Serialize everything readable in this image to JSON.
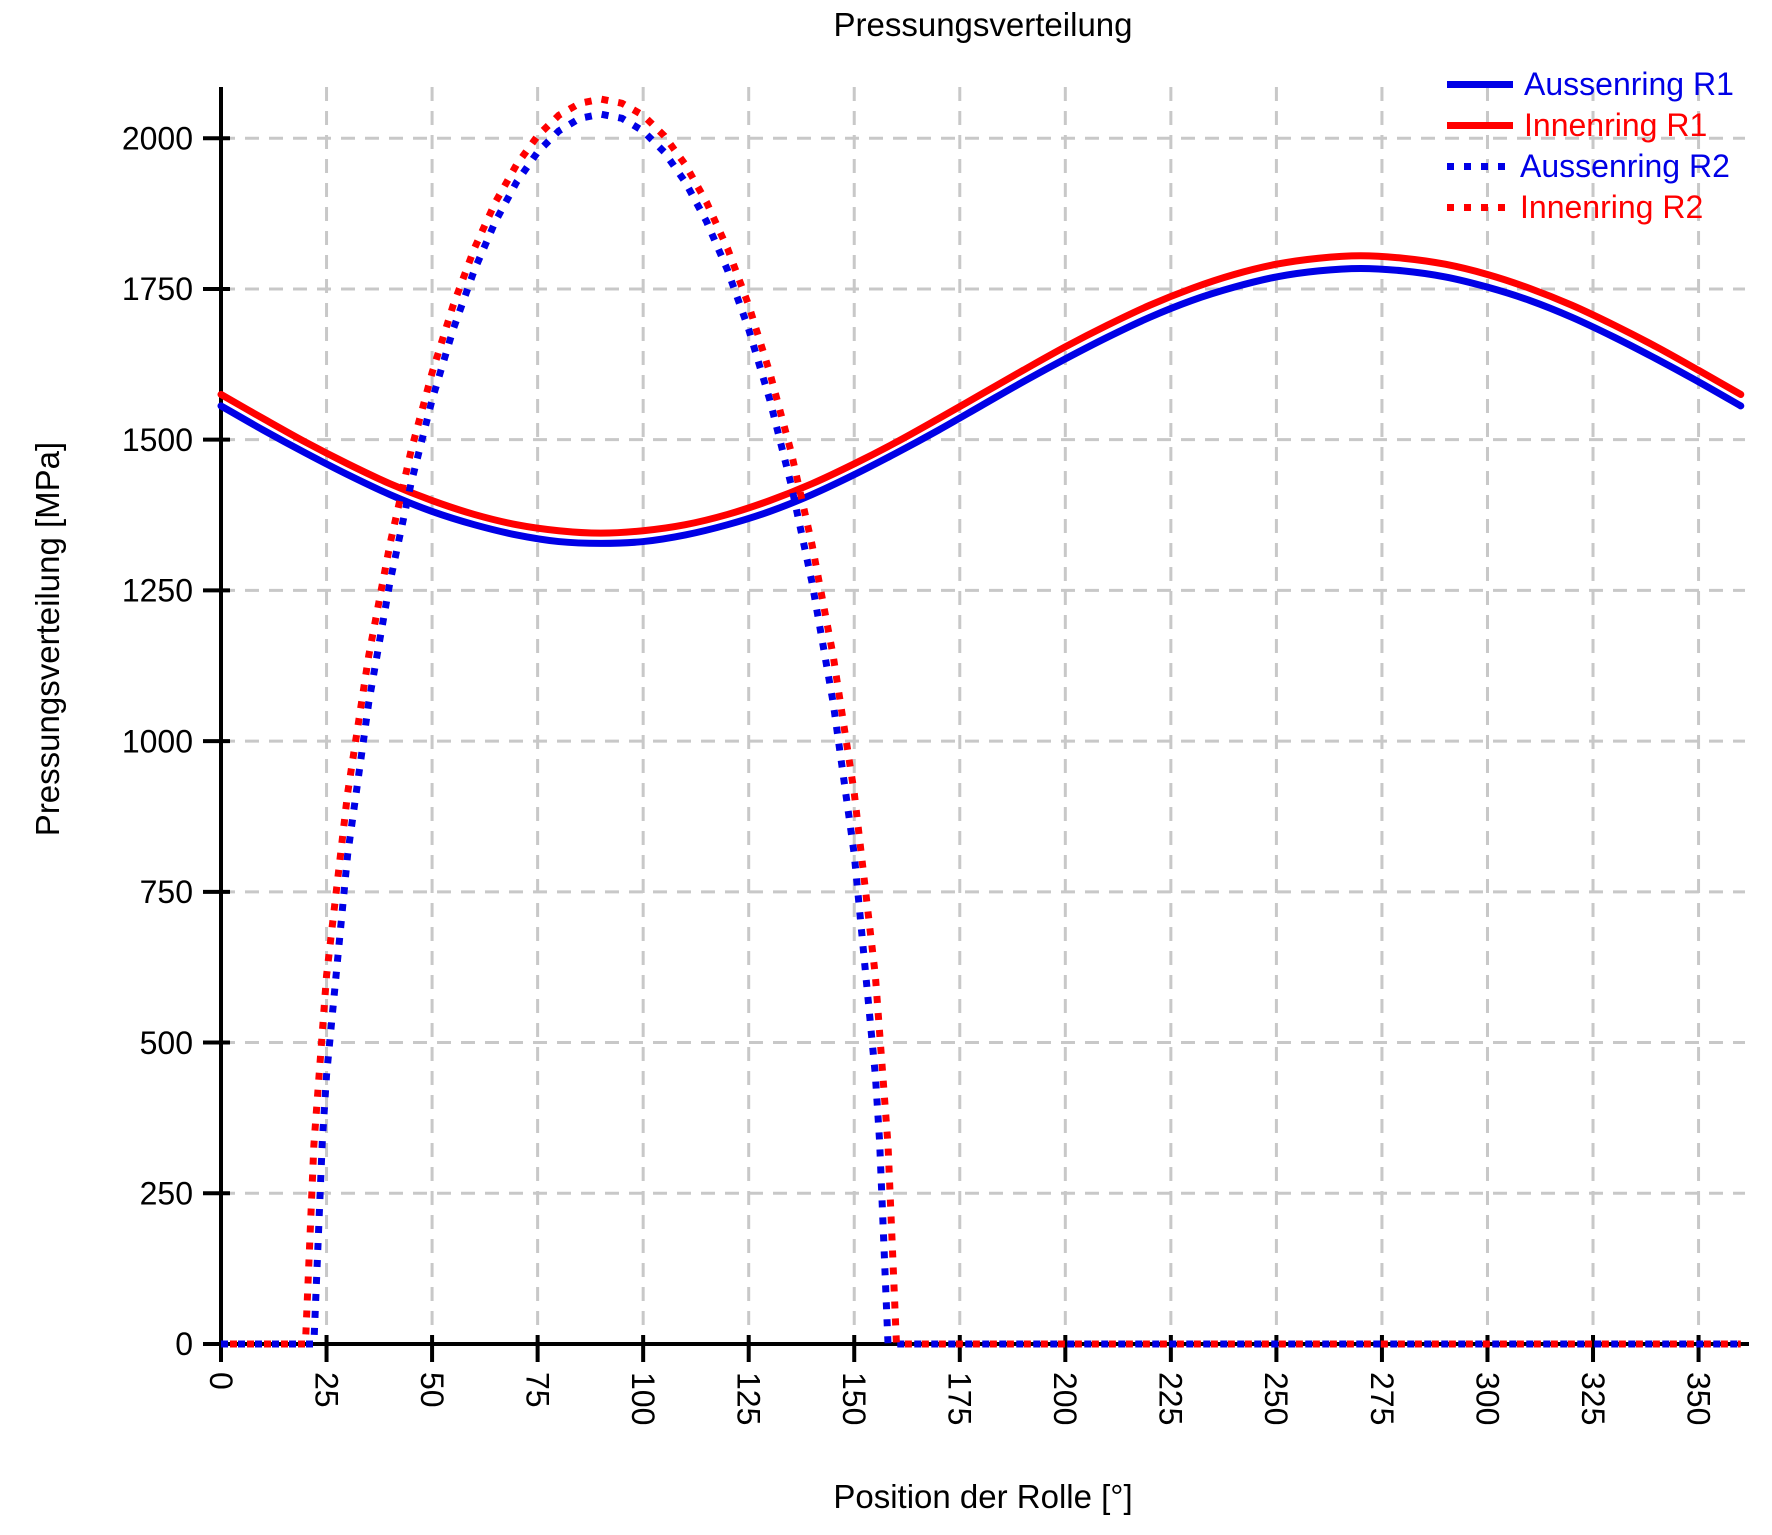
{
  "chart_data": {
    "type": "line",
    "title": "Pressungsverteilung",
    "xlabel": "Position der Rolle [°]",
    "ylabel": "Pressungsverteilung [MPa]",
    "xlim": [
      0,
      361
    ],
    "ylim": [
      0,
      2085
    ],
    "x_ticks": [
      0,
      25,
      50,
      75,
      100,
      125,
      150,
      175,
      200,
      225,
      250,
      275,
      300,
      325,
      350
    ],
    "y_ticks": [
      0,
      250,
      500,
      750,
      1000,
      1250,
      1500,
      1750,
      2000
    ],
    "grid": true,
    "legend_position": "top-right-inside",
    "colors": {
      "blue": "#0000e6",
      "red": "#ff0000",
      "grid": "#c8c8c8",
      "axis": "#000000",
      "background": "#ffffff"
    },
    "series": [
      {
        "name": "Aussenring R1",
        "color": "#0000e6",
        "line_style": "solid",
        "points": [
          [
            0,
            1556
          ],
          [
            10,
            1516
          ],
          [
            20,
            1478
          ],
          [
            30,
            1442
          ],
          [
            40,
            1409
          ],
          [
            50,
            1381
          ],
          [
            60,
            1359
          ],
          [
            70,
            1342
          ],
          [
            80,
            1331
          ],
          [
            90,
            1328
          ],
          [
            100,
            1331
          ],
          [
            110,
            1342
          ],
          [
            120,
            1359
          ],
          [
            130,
            1381
          ],
          [
            140,
            1409
          ],
          [
            150,
            1442
          ],
          [
            160,
            1478
          ],
          [
            170,
            1516
          ],
          [
            180,
            1556
          ],
          [
            190,
            1596
          ],
          [
            200,
            1634
          ],
          [
            210,
            1670
          ],
          [
            220,
            1703
          ],
          [
            230,
            1731
          ],
          [
            240,
            1753
          ],
          [
            250,
            1770
          ],
          [
            260,
            1780
          ],
          [
            270,
            1784
          ],
          [
            280,
            1780
          ],
          [
            290,
            1770
          ],
          [
            300,
            1753
          ],
          [
            310,
            1731
          ],
          [
            320,
            1703
          ],
          [
            330,
            1670
          ],
          [
            340,
            1634
          ],
          [
            350,
            1596
          ],
          [
            360,
            1556
          ]
        ]
      },
      {
        "name": "Innenring R1",
        "color": "#ff0000",
        "line_style": "solid",
        "points": [
          [
            0,
            1575
          ],
          [
            10,
            1535
          ],
          [
            20,
            1496
          ],
          [
            30,
            1460
          ],
          [
            40,
            1427
          ],
          [
            50,
            1399
          ],
          [
            60,
            1376
          ],
          [
            70,
            1359
          ],
          [
            80,
            1349
          ],
          [
            90,
            1345
          ],
          [
            100,
            1349
          ],
          [
            110,
            1359
          ],
          [
            120,
            1376
          ],
          [
            130,
            1399
          ],
          [
            140,
            1427
          ],
          [
            150,
            1460
          ],
          [
            160,
            1496
          ],
          [
            170,
            1535
          ],
          [
            180,
            1575
          ],
          [
            190,
            1615
          ],
          [
            200,
            1654
          ],
          [
            210,
            1690
          ],
          [
            220,
            1723
          ],
          [
            230,
            1751
          ],
          [
            240,
            1774
          ],
          [
            250,
            1791
          ],
          [
            260,
            1801
          ],
          [
            270,
            1805
          ],
          [
            280,
            1801
          ],
          [
            290,
            1791
          ],
          [
            300,
            1774
          ],
          [
            310,
            1751
          ],
          [
            320,
            1723
          ],
          [
            330,
            1690
          ],
          [
            340,
            1654
          ],
          [
            350,
            1615
          ],
          [
            360,
            1575
          ]
        ]
      },
      {
        "name": "Aussenring R2",
        "color": "#0000e6",
        "line_style": "dotted",
        "points": [
          [
            0,
            0
          ],
          [
            10,
            0
          ],
          [
            20,
            0
          ],
          [
            22,
            0
          ],
          [
            24,
            337
          ],
          [
            25,
            446
          ],
          [
            30,
            812
          ],
          [
            35,
            1064
          ],
          [
            40,
            1263
          ],
          [
            45,
            1427
          ],
          [
            50,
            1566
          ],
          [
            55,
            1683
          ],
          [
            60,
            1781
          ],
          [
            65,
            1862
          ],
          [
            70,
            1927
          ],
          [
            75,
            1977
          ],
          [
            80,
            2012
          ],
          [
            85,
            2033
          ],
          [
            90,
            2040
          ],
          [
            95,
            2033
          ],
          [
            100,
            2012
          ],
          [
            105,
            1977
          ],
          [
            110,
            1927
          ],
          [
            115,
            1862
          ],
          [
            120,
            1781
          ],
          [
            125,
            1683
          ],
          [
            130,
            1566
          ],
          [
            135,
            1427
          ],
          [
            140,
            1263
          ],
          [
            145,
            1064
          ],
          [
            150,
            812
          ],
          [
            155,
            446
          ],
          [
            156,
            337
          ],
          [
            158,
            0
          ],
          [
            170,
            0
          ],
          [
            190,
            0
          ],
          [
            210,
            0
          ],
          [
            230,
            0
          ],
          [
            250,
            0
          ],
          [
            270,
            0
          ],
          [
            290,
            0
          ],
          [
            310,
            0
          ],
          [
            330,
            0
          ],
          [
            350,
            0
          ],
          [
            360,
            0
          ]
        ]
      },
      {
        "name": "Innenring R2",
        "color": "#ff0000",
        "line_style": "dotted",
        "points": [
          [
            0,
            0
          ],
          [
            10,
            0
          ],
          [
            20,
            0
          ],
          [
            22,
            330
          ],
          [
            25,
            611
          ],
          [
            30,
            914
          ],
          [
            35,
            1142
          ],
          [
            40,
            1326
          ],
          [
            45,
            1481
          ],
          [
            50,
            1611
          ],
          [
            55,
            1723
          ],
          [
            60,
            1817
          ],
          [
            65,
            1894
          ],
          [
            70,
            1956
          ],
          [
            75,
            2004
          ],
          [
            80,
            2038
          ],
          [
            85,
            2058
          ],
          [
            90,
            2065
          ],
          [
            95,
            2058
          ],
          [
            100,
            2038
          ],
          [
            105,
            2004
          ],
          [
            110,
            1956
          ],
          [
            115,
            1894
          ],
          [
            120,
            1817
          ],
          [
            125,
            1723
          ],
          [
            130,
            1611
          ],
          [
            135,
            1481
          ],
          [
            140,
            1326
          ],
          [
            145,
            1142
          ],
          [
            150,
            914
          ],
          [
            155,
            611
          ],
          [
            158,
            330
          ],
          [
            160,
            0
          ],
          [
            170,
            0
          ],
          [
            190,
            0
          ],
          [
            210,
            0
          ],
          [
            230,
            0
          ],
          [
            250,
            0
          ],
          [
            270,
            0
          ],
          [
            290,
            0
          ],
          [
            310,
            0
          ],
          [
            330,
            0
          ],
          [
            350,
            0
          ],
          [
            360,
            0
          ]
        ]
      }
    ]
  }
}
